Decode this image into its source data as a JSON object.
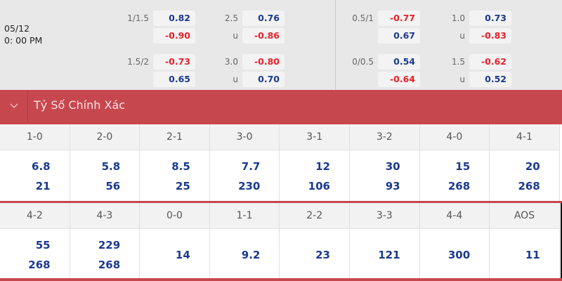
{
  "match": {
    "date": "05/12",
    "time": "0: 00 PM"
  },
  "odds_left": [
    {
      "hdp": "1/1.5",
      "hdp_home": "0.82",
      "hdp_away": "-0.90",
      "ou": "2.5",
      "ou_label": "u",
      "over": "0.76",
      "under": "-0.86"
    },
    {
      "hdp": "1.5/2",
      "hdp_home": "-0.73",
      "hdp_away": "0.65",
      "ou": "3.0",
      "ou_label": "u",
      "over": "-0.80",
      "under": "0.70"
    }
  ],
  "odds_right": [
    {
      "hdp": "0.5/1",
      "hdp_home": "-0.77",
      "hdp_away": "0.67",
      "ou": "1.0",
      "ou_label": "u",
      "over": "0.73",
      "under": "-0.83"
    },
    {
      "hdp": "0/0.5",
      "hdp_home": "0.54",
      "hdp_away": "-0.64",
      "ou": "1.5",
      "ou_label": "u",
      "over": "-0.62",
      "under": "0.52"
    }
  ],
  "section": {
    "title": "Tỷ Số Chính Xác",
    "icon": "chevron-down-icon"
  },
  "scores_row1": [
    {
      "score": "1-0",
      "a": "6.8",
      "b": "21"
    },
    {
      "score": "2-0",
      "a": "5.8",
      "b": "56"
    },
    {
      "score": "2-1",
      "a": "8.5",
      "b": "25"
    },
    {
      "score": "3-0",
      "a": "7.7",
      "b": "230"
    },
    {
      "score": "3-1",
      "a": "12",
      "b": "106"
    },
    {
      "score": "3-2",
      "a": "30",
      "b": "93"
    },
    {
      "score": "4-0",
      "a": "15",
      "b": "268"
    },
    {
      "score": "4-1",
      "a": "20",
      "b": "268"
    }
  ],
  "scores_row2": [
    {
      "score": "4-2",
      "a": "55",
      "b": "268"
    },
    {
      "score": "4-3",
      "a": "229",
      "b": "268"
    },
    {
      "score": "0-0",
      "a": "14"
    },
    {
      "score": "1-1",
      "a": "9.2"
    },
    {
      "score": "2-2",
      "a": "23"
    },
    {
      "score": "3-3",
      "a": "121"
    },
    {
      "score": "4-4",
      "a": "300"
    },
    {
      "score": "AOS",
      "a": "11"
    }
  ],
  "colors": {
    "header": "#c7474f",
    "positive": "#1a3a8f",
    "negative": "#e8202a"
  }
}
